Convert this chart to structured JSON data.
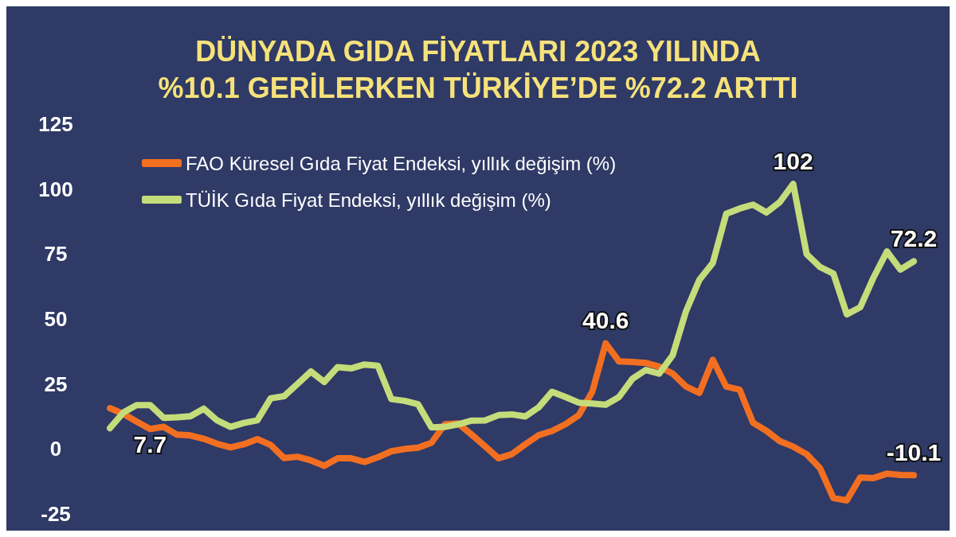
{
  "chart_data": {
    "type": "line",
    "title": "DÜNYADA GIDA FİYATLARI 2023 YILINDA\n%10.1 GERİLERKEN TÜRKİYE’DE %72.2 ARTTI",
    "categories": [
      null,
      null,
      null,
      null,
      null,
      null,
      null,
      null,
      null,
      null,
      null,
      null,
      null,
      null,
      null,
      null,
      null,
      null,
      null,
      null,
      null,
      null,
      null,
      null,
      null,
      null,
      null,
      null,
      null,
      null,
      null,
      null,
      null,
      null,
      null,
      null,
      null,
      null,
      null,
      null,
      null,
      null,
      null,
      null,
      null,
      null,
      null,
      null,
      null,
      null,
      null,
      null,
      null,
      null,
      null,
      null,
      null,
      null,
      null,
      null,
      null
    ],
    "ylim": [
      -25,
      125
    ],
    "yticks": [
      -25,
      0,
      25,
      50,
      75,
      100,
      125
    ],
    "tick_labels": "y",
    "grid": false,
    "legend": "top left",
    "marker": "none",
    "line_style": "solid",
    "series": [
      {
        "name": "FAO Küresel Gıda Fiyat Endeksi, yıllık değişim (%)",
        "color": "#f26f21",
        "values": [
          15.7,
          13.5,
          10.5,
          7.7,
          8.5,
          5.5,
          5.2,
          3.9,
          2,
          0.6,
          1.8,
          3.8,
          1.5,
          -3.5,
          -3,
          -4.4,
          -6.5,
          -3.6,
          -3.6,
          -5,
          -3.2,
          -0.9,
          0,
          0.5,
          2.4,
          9.5,
          9.8,
          5.5,
          1,
          -3.6,
          -2,
          1.8,
          5.3,
          6.9,
          9.5,
          13,
          22,
          40.6,
          33.7,
          33.5,
          33.1,
          31.7,
          29,
          24,
          21.6,
          34.3,
          24,
          22.8,
          10.1,
          7,
          3,
          0.9,
          -2,
          -7.4,
          -18.9,
          -19.8,
          -11,
          -11.2,
          -9.5,
          -10,
          -10.1
        ],
        "value_labels": [
          null,
          null,
          null,
          "7.7",
          null,
          null,
          null,
          null,
          null,
          null,
          null,
          null,
          null,
          null,
          null,
          null,
          null,
          null,
          null,
          null,
          null,
          null,
          null,
          null,
          null,
          null,
          null,
          null,
          null,
          null,
          null,
          null,
          null,
          null,
          null,
          null,
          null,
          "40.6",
          null,
          null,
          null,
          null,
          null,
          null,
          null,
          null,
          null,
          null,
          null,
          null,
          null,
          null,
          null,
          null,
          null,
          null,
          null,
          null,
          null,
          null,
          "-10.1"
        ]
      },
      {
        "name": "TÜİK Gıda Fiyat Endeksi, yıllık değişim (%)",
        "color": "#c5dc7a",
        "values": [
          8,
          14,
          16.9,
          16.9,
          12,
          12.2,
          12.6,
          15.5,
          11,
          8.5,
          10,
          11,
          19.5,
          20.3,
          25,
          29.8,
          25.8,
          31.5,
          31,
          32.5,
          32,
          19.2,
          18.5,
          17.2,
          8.3,
          8.5,
          9.5,
          10.9,
          11,
          13,
          13.3,
          12.5,
          16,
          22,
          20,
          17.8,
          17.5,
          17,
          20,
          27,
          30.4,
          29,
          36,
          53,
          65.1,
          71.6,
          90.5,
          92.5,
          94,
          91,
          95,
          102,
          75,
          70,
          67.5,
          51.8,
          54.5,
          66,
          76,
          69,
          72.2
        ],
        "value_labels": [
          null,
          null,
          null,
          null,
          null,
          null,
          null,
          null,
          null,
          null,
          null,
          null,
          null,
          null,
          null,
          null,
          null,
          null,
          null,
          null,
          null,
          null,
          null,
          null,
          null,
          null,
          null,
          null,
          null,
          null,
          null,
          null,
          null,
          null,
          null,
          null,
          null,
          null,
          null,
          null,
          null,
          null,
          null,
          null,
          null,
          null,
          null,
          null,
          null,
          null,
          null,
          "102",
          null,
          null,
          null,
          null,
          null,
          null,
          null,
          null,
          "72.2"
        ]
      }
    ]
  }
}
